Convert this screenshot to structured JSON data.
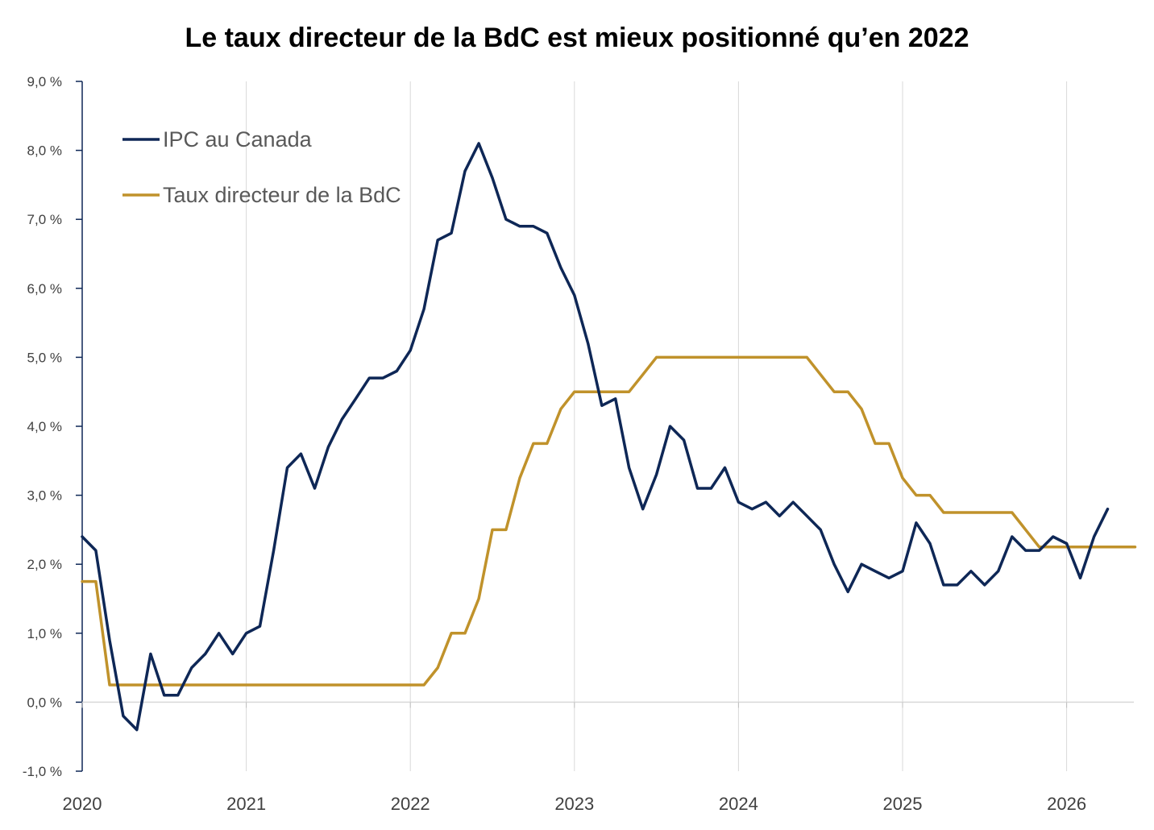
{
  "chart_data": {
    "type": "line",
    "title": "Le taux directeur de la BdC est mieux positionné qu’en 2022",
    "xlabel": "",
    "ylabel": "",
    "x_ticks": [
      "2020",
      "2021",
      "2022",
      "2023",
      "2024",
      "2025",
      "2026"
    ],
    "x_range": [
      2020.0,
      2026.42
    ],
    "ylim": [
      -1.0,
      9.0
    ],
    "y_ticks": [
      "-1,0 %",
      "0,0 %",
      "1,0 %",
      "2,0 %",
      "3,0 %",
      "4,0 %",
      "5,0 %",
      "6,0 %",
      "7,0 %",
      "8,0 %",
      "9,0 %"
    ],
    "y_tick_values": [
      -1,
      0,
      1,
      2,
      3,
      4,
      5,
      6,
      7,
      8,
      9
    ],
    "grid": "vertical lines at year ticks",
    "legend_position": "top-left",
    "series": [
      {
        "name": "IPC au Canada",
        "color": "#0e2756",
        "x": [
          2020.0,
          2020.083,
          2020.167,
          2020.25,
          2020.333,
          2020.417,
          2020.5,
          2020.583,
          2020.667,
          2020.75,
          2020.833,
          2020.917,
          2021.0,
          2021.083,
          2021.167,
          2021.25,
          2021.333,
          2021.417,
          2021.5,
          2021.583,
          2021.667,
          2021.75,
          2021.833,
          2021.917,
          2022.0,
          2022.083,
          2022.167,
          2022.25,
          2022.333,
          2022.417,
          2022.5,
          2022.583,
          2022.667,
          2022.75,
          2022.833,
          2022.917,
          2023.0,
          2023.083,
          2023.167,
          2023.25,
          2023.333,
          2023.417,
          2023.5,
          2023.583,
          2023.667,
          2023.75,
          2023.833,
          2023.917,
          2024.0,
          2024.083,
          2024.167,
          2024.25,
          2024.333,
          2024.417,
          2024.5,
          2024.583,
          2024.667,
          2024.75,
          2024.833,
          2024.917,
          2025.0,
          2025.083,
          2025.167,
          2025.25,
          2025.333,
          2025.417,
          2025.5,
          2025.583,
          2025.667,
          2025.75,
          2025.833,
          2025.917,
          2026.0,
          2026.083,
          2026.167,
          2026.25
        ],
        "values": [
          2.4,
          2.2,
          0.9,
          -0.2,
          -0.4,
          0.7,
          0.1,
          0.1,
          0.5,
          0.7,
          1.0,
          0.7,
          1.0,
          1.1,
          2.2,
          3.4,
          3.6,
          3.1,
          3.7,
          4.1,
          4.4,
          4.7,
          4.7,
          4.8,
          5.1,
          5.7,
          6.7,
          6.8,
          7.7,
          8.1,
          7.6,
          7.0,
          6.9,
          6.9,
          6.8,
          6.3,
          5.9,
          5.2,
          4.3,
          4.4,
          3.4,
          2.8,
          3.3,
          4.0,
          3.8,
          3.1,
          3.1,
          3.4,
          2.9,
          2.8,
          2.9,
          2.7,
          2.9,
          2.7,
          2.5,
          2.0,
          1.6,
          2.0,
          1.9,
          1.8,
          1.9,
          2.6,
          2.3,
          1.7,
          1.7,
          1.9,
          1.7,
          1.9,
          2.4,
          2.2,
          2.2,
          2.4,
          2.3,
          1.8,
          2.4,
          2.8
        ]
      },
      {
        "name": "Taux directeur de la BdC",
        "color": "#c0922b",
        "x": [
          2020.0,
          2020.083,
          2020.167,
          2022.083,
          2022.167,
          2022.25,
          2022.333,
          2022.417,
          2022.5,
          2022.583,
          2022.667,
          2022.75,
          2022.833,
          2022.917,
          2023.0,
          2023.083,
          2023.167,
          2023.25,
          2023.333,
          2023.417,
          2023.5,
          2023.583,
          2023.667,
          2023.75,
          2023.833,
          2023.917,
          2024.0,
          2024.083,
          2024.167,
          2024.25,
          2024.333,
          2024.417,
          2024.5,
          2024.583,
          2024.667,
          2024.75,
          2024.833,
          2024.917,
          2025.0,
          2025.083,
          2025.167,
          2025.25,
          2025.333,
          2025.417,
          2025.5,
          2025.583,
          2025.667,
          2025.75,
          2025.833,
          2025.917,
          2026.0,
          2026.083,
          2026.167,
          2026.25,
          2026.417
        ],
        "values": [
          1.75,
          1.75,
          0.25,
          0.25,
          0.5,
          1.0,
          1.0,
          1.5,
          2.5,
          2.5,
          3.25,
          3.75,
          3.75,
          4.25,
          4.5,
          4.5,
          4.5,
          4.5,
          4.5,
          4.75,
          5.0,
          5.0,
          5.0,
          5.0,
          5.0,
          5.0,
          5.0,
          5.0,
          5.0,
          5.0,
          5.0,
          5.0,
          4.75,
          4.5,
          4.5,
          4.25,
          3.75,
          3.75,
          3.25,
          3.0,
          3.0,
          2.75,
          2.75,
          2.75,
          2.75,
          2.75,
          2.75,
          2.5,
          2.25,
          2.25,
          2.25,
          2.25,
          2.25,
          2.25,
          2.25
        ]
      }
    ]
  }
}
